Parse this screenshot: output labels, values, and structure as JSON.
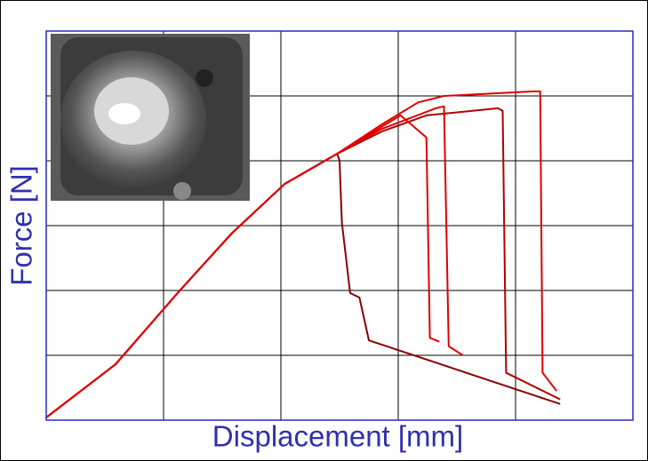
{
  "chart_data": {
    "type": "line",
    "xlabel": "Displacement [mm]",
    "ylabel": "Force [N]",
    "xlim": [
      0,
      5
    ],
    "ylim": [
      0,
      6
    ],
    "xticks": [
      0,
      1,
      2,
      3,
      4,
      5
    ],
    "yticks": [
      0,
      1,
      2,
      3,
      4,
      5,
      6
    ],
    "grid": true,
    "series": [
      {
        "color": "#8b0000",
        "x": [
          0,
          0.59,
          1.12,
          1.58,
          2.03,
          2.48,
          2.5,
          2.52,
          2.59,
          2.67,
          2.75,
          4.38
        ],
        "values": [
          0.04,
          0.86,
          1.96,
          2.88,
          3.64,
          4.11,
          4.0,
          3.05,
          1.96,
          1.89,
          1.23,
          0.25
        ]
      },
      {
        "color": "#e00000",
        "x": [
          0,
          0.59,
          1.12,
          1.58,
          2.03,
          2.48,
          2.86,
          3.17,
          3.39,
          4.15,
          4.21,
          4.23,
          4.35
        ],
        "values": [
          0.04,
          0.86,
          1.96,
          2.88,
          3.64,
          4.11,
          4.56,
          4.9,
          5.0,
          5.07,
          5.07,
          0.73,
          0.45
        ]
      },
      {
        "color": "#b00000",
        "x": [
          0,
          0.59,
          1.12,
          1.58,
          2.03,
          2.48,
          2.86,
          3.24,
          3.85,
          3.89,
          3.92,
          4.38
        ],
        "values": [
          0.04,
          0.86,
          1.96,
          2.88,
          3.64,
          4.11,
          4.45,
          4.7,
          4.81,
          4.77,
          0.73,
          0.32
        ]
      },
      {
        "color": "#e00000",
        "x": [
          0,
          0.59,
          1.12,
          1.58,
          2.03,
          2.48,
          2.86,
          3.32,
          3.39,
          3.43,
          3.55
        ],
        "values": [
          0.04,
          0.86,
          1.96,
          2.88,
          3.64,
          4.11,
          4.49,
          4.81,
          4.84,
          1.14,
          1.0
        ]
      },
      {
        "color": "#e00000",
        "x": [
          0,
          0.59,
          1.12,
          1.58,
          2.03,
          2.48,
          3.02,
          3.24,
          3.27,
          3.35
        ],
        "values": [
          0.04,
          0.86,
          1.96,
          2.88,
          3.64,
          4.11,
          4.7,
          4.36,
          1.27,
          1.21
        ]
      }
    ]
  }
}
